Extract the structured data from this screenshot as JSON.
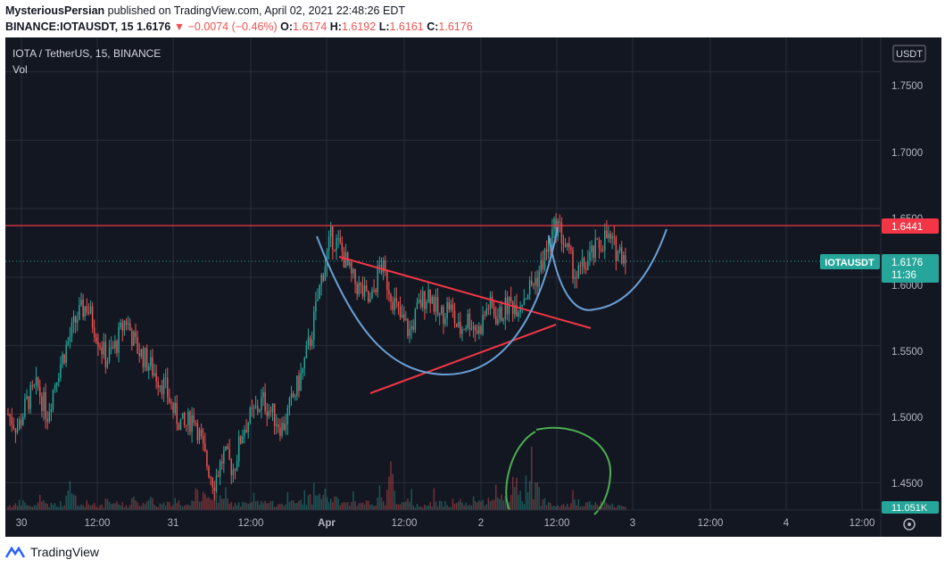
{
  "header": {
    "publisher": "MysteriousPersian",
    "published_text": "published on TradingView.com, April 02, 2021 22:48:26 EDT",
    "symbol_line": "BINANCE:IOTAUSDT, 15",
    "last": "1.6176",
    "change": "−0.0074 (−0.46%)",
    "o_label": "O:",
    "o_val": "1.6174",
    "h_label": "H:",
    "h_val": "1.6192",
    "l_label": "L:",
    "l_val": "1.6161",
    "c_label": "C:",
    "c_val": "1.6176"
  },
  "legend": {
    "title": "IOTA / TetherUS, 15, BINANCE",
    "vol": "Vol"
  },
  "price_axis": {
    "currency": "USDT",
    "ticks": [
      "1.7500",
      "1.7000",
      "1.6500",
      "1.6000",
      "1.5500",
      "1.5000",
      "1.4500"
    ],
    "alert_level": "1.6441",
    "last_symbol": "IOTAUSDT",
    "last_price": "1.6176",
    "countdown": "11:36",
    "volume_tag": "11.051K"
  },
  "time_axis": {
    "ticks": [
      "30",
      "12:00",
      "31",
      "12:00",
      "Apr",
      "12:00",
      "2",
      "12:00",
      "3",
      "12:00",
      "4",
      "12:00"
    ]
  },
  "footer": {
    "brand": "TradingView"
  },
  "colors": {
    "background": "#131722",
    "up": "#26a69a",
    "down": "#ef5350",
    "alert_line": "#f23645",
    "trendline": "#f23645",
    "cup_curve": "#6a9fd4",
    "circle": "#4caf50",
    "last_price_tag": "#26a69a"
  },
  "chart_data": {
    "type": "candlestick",
    "symbol": "IOTA / TetherUS",
    "interval": "15",
    "exchange": "BINANCE",
    "ylim": [
      1.43,
      1.775
    ],
    "last_price": 1.6176,
    "horizontal_level": 1.6441,
    "ohlc_last": {
      "open": 1.6174,
      "high": 1.6192,
      "low": 1.6161,
      "close": 1.6176
    },
    "approx_close_path": [
      1.5,
      1.49,
      1.51,
      1.52,
      1.5,
      1.53,
      1.55,
      1.57,
      1.58,
      1.56,
      1.54,
      1.55,
      1.57,
      1.55,
      1.54,
      1.53,
      1.52,
      1.5,
      1.49,
      1.5,
      1.47,
      1.45,
      1.47,
      1.46,
      1.49,
      1.5,
      1.51,
      1.5,
      1.49,
      1.51,
      1.53,
      1.56,
      1.6,
      1.63,
      1.62,
      1.6,
      1.59,
      1.58,
      1.61,
      1.59,
      1.57,
      1.56,
      1.58,
      1.59,
      1.57,
      1.58,
      1.56,
      1.57,
      1.56,
      1.58,
      1.57,
      1.58,
      1.58,
      1.59,
      1.6,
      1.62,
      1.64,
      1.62,
      1.6,
      1.61,
      1.62,
      1.63,
      1.62,
      1.6176
    ],
    "approx_volume_profile": [
      6,
      9,
      5,
      12,
      7,
      8,
      18,
      6,
      9,
      5,
      10,
      8,
      6,
      9,
      14,
      7,
      8,
      10,
      6,
      9,
      22,
      16,
      12,
      8,
      7,
      9,
      10,
      8,
      11,
      9,
      12,
      15,
      20,
      14,
      10,
      8,
      7,
      9,
      11,
      44,
      8,
      10,
      6,
      7,
      9,
      8,
      10,
      7,
      12,
      9,
      14,
      18,
      32,
      16,
      26,
      12,
      9,
      8,
      10,
      7,
      9,
      8,
      6,
      5
    ]
  }
}
